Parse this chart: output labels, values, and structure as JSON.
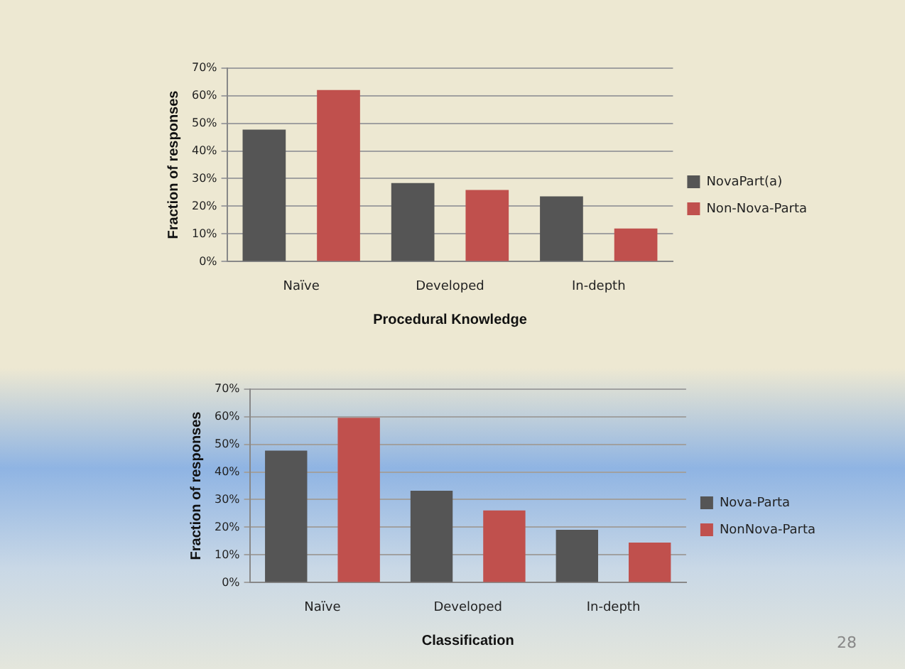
{
  "chart_data": [
    {
      "type": "bar",
      "xlabel": "Procedural Knowledge",
      "ylabel": "Fraction of responses",
      "categories": [
        "Naïve",
        "Developed",
        "In-depth"
      ],
      "series": [
        {
          "name": "NovaPart(a)",
          "color": "#555555",
          "values": [
            47.7,
            28.4,
            23.6
          ]
        },
        {
          "name": "Non-Nova-Parta",
          "color": "#c0504d",
          "values": [
            62,
            25.9,
            12
          ]
        }
      ],
      "ylim": [
        0,
        70
      ],
      "yticks": [
        {
          "value": 0,
          "label": "0%"
        },
        {
          "value": 10,
          "label": "10%"
        },
        {
          "value": 20,
          "label": "20%"
        },
        {
          "value": 30,
          "label": "30%"
        },
        {
          "value": 40,
          "label": "40%"
        },
        {
          "value": 50,
          "label": "50%"
        },
        {
          "value": 60,
          "label": "60%"
        },
        {
          "value": 70,
          "label": "70%"
        }
      ],
      "grid": "y",
      "legend": "right"
    },
    {
      "type": "bar",
      "xlabel": "Classification",
      "ylabel": "Fraction of responses",
      "categories": [
        "Naïve",
        "Developed",
        "In-depth"
      ],
      "series": [
        {
          "name": "Nova-Parta",
          "color": "#555555",
          "values": [
            47.7,
            33.2,
            19.1
          ]
        },
        {
          "name": "NonNova-Parta",
          "color": "#c0504d",
          "values": [
            59.6,
            26.1,
            14.5
          ]
        }
      ],
      "ylim": [
        0,
        70
      ],
      "yticks": [
        {
          "value": 0,
          "label": "0%"
        },
        {
          "value": 10,
          "label": "10%"
        },
        {
          "value": 20,
          "label": "20%"
        },
        {
          "value": 30,
          "label": "30%"
        },
        {
          "value": 40,
          "label": "40%"
        },
        {
          "value": 50,
          "label": "50%"
        },
        {
          "value": 60,
          "label": "60%"
        },
        {
          "value": 70,
          "label": "70%"
        }
      ],
      "grid": "y",
      "legend": "right",
      "annotations": [
        "28"
      ]
    }
  ]
}
